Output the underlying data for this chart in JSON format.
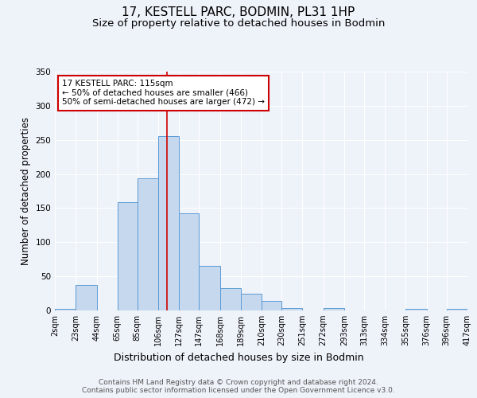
{
  "title": "17, KESTELL PARC, BODMIN, PL31 1HP",
  "subtitle": "Size of property relative to detached houses in Bodmin",
  "xlabel": "Distribution of detached houses by size in Bodmin",
  "ylabel": "Number of detached properties",
  "bin_edges": [
    2,
    23,
    44,
    65,
    85,
    106,
    127,
    147,
    168,
    189,
    210,
    230,
    251,
    272,
    293,
    313,
    334,
    355,
    376,
    396,
    417
  ],
  "bar_heights": [
    2,
    37,
    0,
    159,
    194,
    255,
    142,
    65,
    33,
    24,
    14,
    4,
    0,
    4,
    0,
    0,
    0,
    2,
    0,
    2
  ],
  "bar_color": "#c5d8ee",
  "bar_edge_color": "#5b9bd5",
  "property_line_x": 115,
  "property_line_color": "#cc0000",
  "annotation_text": "17 KESTELL PARC: 115sqm\n← 50% of detached houses are smaller (466)\n50% of semi-detached houses are larger (472) →",
  "annotation_box_color": "#ffffff",
  "annotation_box_edge": "#cc0000",
  "background_color": "#eef2f9",
  "grid_color": "#ffffff",
  "ylim": [
    0,
    350
  ],
  "yticks": [
    0,
    50,
    100,
    150,
    200,
    250,
    300,
    350
  ],
  "footer_text": "Contains HM Land Registry data © Crown copyright and database right 2024.\nContains public sector information licensed under the Open Government Licence v3.0.",
  "title_fontsize": 11,
  "subtitle_fontsize": 9.5,
  "tick_label_fontsize": 7,
  "ylabel_fontsize": 8.5,
  "xlabel_fontsize": 9
}
